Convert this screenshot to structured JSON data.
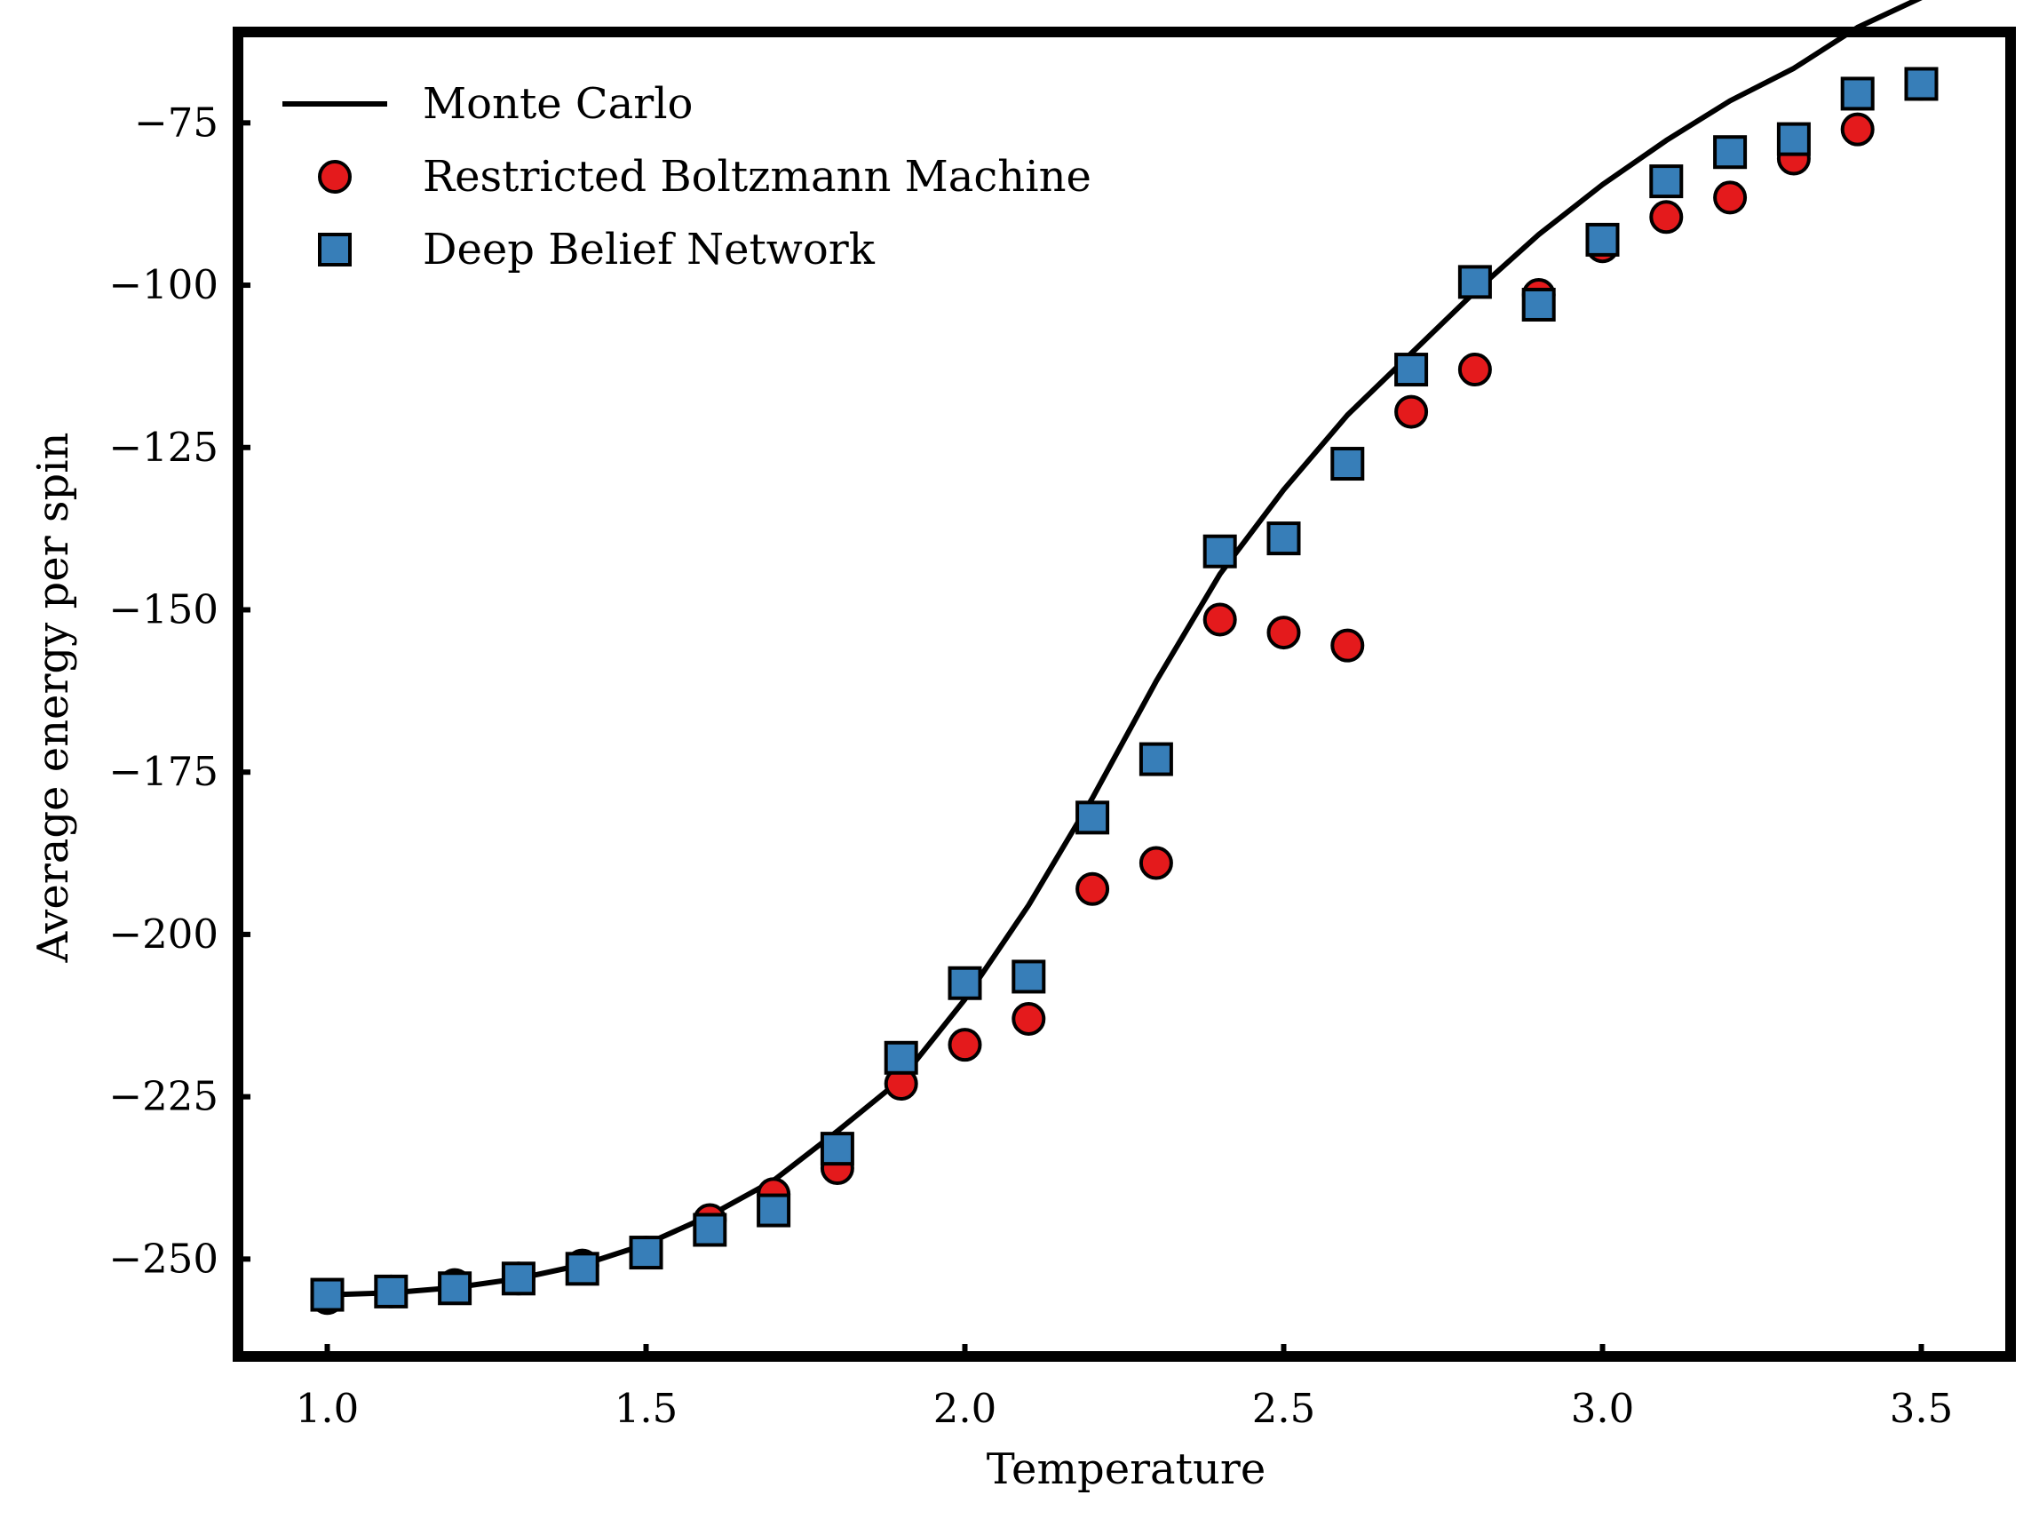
{
  "chart_data": {
    "type": "scatter",
    "title": "",
    "xlabel": "Temperature",
    "ylabel": "Average energy per spin",
    "xlim": [
      0.86,
      3.64
    ],
    "ylim": [
      -265,
      -61
    ],
    "xticks": [
      1.0,
      1.5,
      2.0,
      2.5,
      3.0,
      3.5
    ],
    "xtick_labels": [
      "1.0",
      "1.5",
      "2.0",
      "2.5",
      "3.0",
      "3.5"
    ],
    "yticks": [
      -75,
      -100,
      -125,
      -150,
      -175,
      -200,
      -225,
      -250
    ],
    "ytick_labels": [
      "−75",
      "−100",
      "−125",
      "−150",
      "−175",
      "−200",
      "−225",
      "−250"
    ],
    "grid": false,
    "legend_position": "top-left",
    "x": [
      1.0,
      1.1,
      1.2,
      1.3,
      1.4,
      1.5,
      1.6,
      1.7,
      1.8,
      1.9,
      2.0,
      2.1,
      2.2,
      2.3,
      2.4,
      2.5,
      2.6,
      2.7,
      2.8,
      2.9,
      3.0,
      3.1,
      3.2,
      3.3,
      3.4,
      3.5
    ],
    "series": [
      {
        "name": "Monte Carlo",
        "kind": "line",
        "color": "#000000",
        "values": [
          -255.5,
          -255.2,
          -254.4,
          -253.0,
          -250.9,
          -247.7,
          -243.3,
          -237.9,
          -230.3,
          -222.3,
          -210.0,
          -195.5,
          -179.0,
          -161.0,
          -144.5,
          -131.5,
          -120.0,
          -110.5,
          -101.0,
          -92.2,
          -84.5,
          -77.7,
          -71.6,
          -66.6,
          -60.3,
          -55.7
        ]
      },
      {
        "name": "Restricted Boltzmann Machine",
        "kind": "scatter",
        "marker": "circle",
        "color": "#e41a1c",
        "values": [
          -256.0,
          -255.0,
          -254.0,
          -253.0,
          -251.0,
          -249.0,
          -244.0,
          -240.0,
          -236.0,
          -223.0,
          -217.0,
          -213.0,
          -193.0,
          -189.0,
          -151.5,
          -153.5,
          -155.5,
          -119.5,
          -113.0,
          -101.5,
          -94.0,
          -89.5,
          -86.5,
          -80.5,
          -76.0,
          -69.0
        ]
      },
      {
        "name": "Deep Belief Network",
        "kind": "scatter",
        "marker": "square",
        "color": "#377eb8",
        "values": [
          -255.5,
          -255.0,
          -254.5,
          -253.0,
          -251.5,
          -249.0,
          -245.5,
          -242.5,
          -233.0,
          -219.0,
          -207.5,
          -206.5,
          -182.0,
          -173.0,
          -141.0,
          -139.0,
          -127.5,
          -113.0,
          -99.5,
          -103.0,
          -93.0,
          -84.0,
          -79.5,
          -77.5,
          -70.5,
          -69.0
        ]
      }
    ]
  }
}
